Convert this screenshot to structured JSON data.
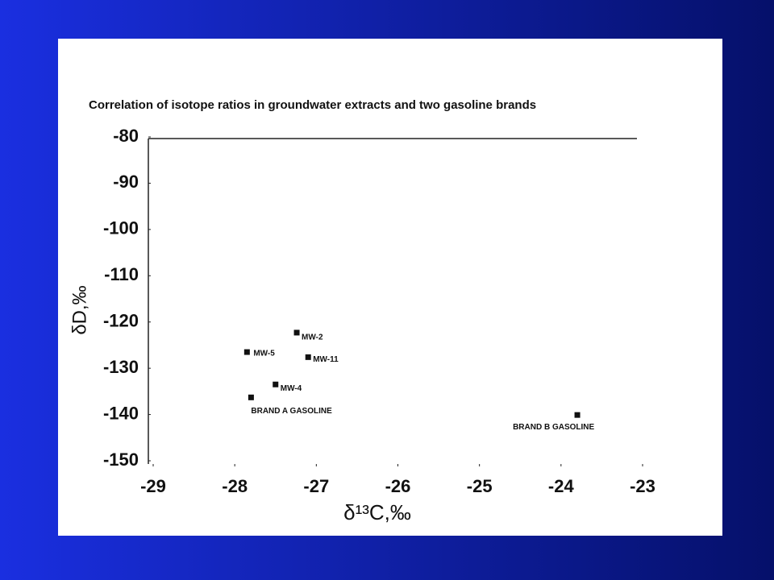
{
  "chart_data": {
    "type": "scatter",
    "title": "Correlation of isotope ratios in groundwater extracts and two gasoline brands",
    "x_label": "δ¹³C,‰",
    "y_label": "δD,‰",
    "point_labels": [
      "MW-2",
      "MW-5",
      "MW-11",
      "MW-4",
      "BRAND A GASOLINE",
      "BRAND B GASOLINE"
    ],
    "x": [
      -27.24,
      -27.85,
      -27.1,
      -27.5,
      -27.8,
      -23.8
    ],
    "values": [
      -122.3,
      -126.5,
      -127.6,
      -133.5,
      -136.3,
      -140.1
    ],
    "color": "#111111",
    "xlim": [
      -29,
      -23
    ],
    "xticks": [
      -29,
      -28,
      -27,
      -26,
      -25,
      -24,
      -23
    ],
    "ylim": [
      -150,
      -80
    ],
    "yticks": [
      -80,
      -90,
      -100,
      -110,
      -120,
      -130,
      -140,
      -150
    ]
  }
}
